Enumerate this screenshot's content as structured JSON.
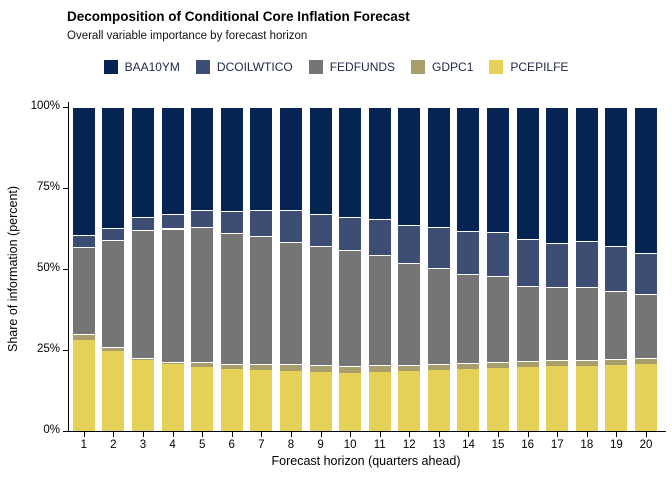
{
  "title": "Decomposition of Conditional Core Inflation Forecast",
  "subtitle": "Overall variable importance by forecast horizon",
  "legend": [
    {
      "label": "BAA10YM",
      "color": "#062452"
    },
    {
      "label": "DCOILWTICO",
      "color": "#3e4d73"
    },
    {
      "label": "FEDFUNDS",
      "color": "#757575"
    },
    {
      "label": "GDPC1",
      "color": "#a89e6b"
    },
    {
      "label": "PCEPILFE",
      "color": "#e6d158"
    }
  ],
  "y_axis": {
    "title": "Share of information (percent)",
    "ticks": [
      {
        "label": "100%",
        "value": 100
      },
      {
        "label": "75%",
        "value": 75
      },
      {
        "label": "50%",
        "value": 50
      },
      {
        "label": "25%",
        "value": 25
      },
      {
        "label": "0%",
        "value": 0
      }
    ]
  },
  "x_axis": {
    "title": "Forecast horizon (quarters ahead)"
  },
  "chart_data": {
    "type": "bar",
    "stacked": true,
    "title": "Decomposition of Conditional Core Inflation Forecast",
    "subtitle": "Overall variable importance by forecast horizon",
    "xlabel": "Forecast horizon (quarters ahead)",
    "ylabel": "Share of information (percent)",
    "ylim": [
      0,
      100
    ],
    "grid": false,
    "legend_position": "top",
    "categories": [
      "1",
      "2",
      "3",
      "4",
      "5",
      "6",
      "7",
      "8",
      "9",
      "10",
      "11",
      "12",
      "13",
      "14",
      "15",
      "16",
      "17",
      "18",
      "19",
      "20"
    ],
    "series": [
      {
        "name": "PCEPILFE",
        "color": "#e6d158",
        "values": [
          28.0,
          24.8,
          22.0,
          20.6,
          19.8,
          19.0,
          18.7,
          18.5,
          18.2,
          17.9,
          18.2,
          18.5,
          18.8,
          19.1,
          19.4,
          19.7,
          20.0,
          20.2,
          20.4,
          20.6
        ]
      },
      {
        "name": "GDPC1",
        "color": "#a89e6b",
        "values": [
          1.9,
          1.0,
          0.6,
          0.8,
          1.4,
          1.8,
          2.1,
          2.2,
          2.1,
          2.1,
          2.1,
          2.0,
          2.0,
          1.9,
          1.9,
          1.9,
          1.8,
          1.8,
          1.8,
          1.8
        ]
      },
      {
        "name": "FEDFUNDS",
        "color": "#757575",
        "values": [
          26.8,
          33.1,
          39.5,
          41.1,
          41.7,
          40.3,
          39.4,
          37.6,
          36.8,
          35.8,
          33.9,
          31.4,
          29.4,
          27.6,
          26.6,
          23.3,
          22.5,
          22.3,
          20.9,
          20.0
        ]
      },
      {
        "name": "DCOILWTICO",
        "color": "#3e4d73",
        "values": [
          3.7,
          3.7,
          4.1,
          4.5,
          5.3,
          6.9,
          8.0,
          9.8,
          9.9,
          10.1,
          11.1,
          11.7,
          12.9,
          13.1,
          13.4,
          14.3,
          13.7,
          14.2,
          13.9,
          12.5
        ]
      },
      {
        "name": "BAA10YM",
        "color": "#062452",
        "values": [
          39.6,
          37.4,
          33.8,
          33.0,
          31.8,
          32.0,
          31.8,
          31.9,
          33.0,
          34.1,
          34.7,
          36.4,
          36.9,
          38.3,
          38.7,
          40.8,
          42.0,
          41.5,
          43.0,
          45.1
        ]
      }
    ]
  }
}
